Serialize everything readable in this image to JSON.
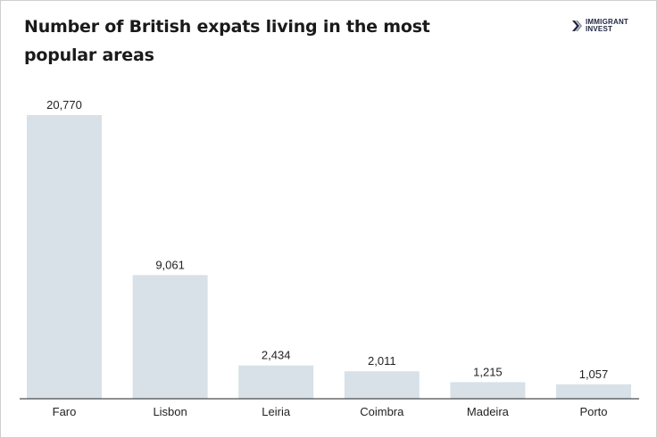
{
  "title": "Number of British expats living in the most popular areas",
  "brand": {
    "line1": "IMMIGRANT",
    "line2": "INVEST",
    "icon": "chevron-right-icon",
    "color": "#1f2540"
  },
  "colors": {
    "bar": "#d8e1e8",
    "text": "#222222"
  },
  "chart_data": {
    "type": "bar",
    "title": "Number of British expats living in the most popular areas",
    "categories": [
      "Faro",
      "Lisbon",
      "Leiria",
      "Coimbra",
      "Madeira",
      "Porto"
    ],
    "values": [
      20770,
      9061,
      2434,
      2011,
      1215,
      1057
    ],
    "value_labels": [
      "20,770",
      "9,061",
      "2,434",
      "2,011",
      "1,215",
      "1,057"
    ],
    "xlabel": "",
    "ylabel": "",
    "ylim": [
      0,
      20770
    ],
    "grid": false,
    "legend": "none"
  }
}
